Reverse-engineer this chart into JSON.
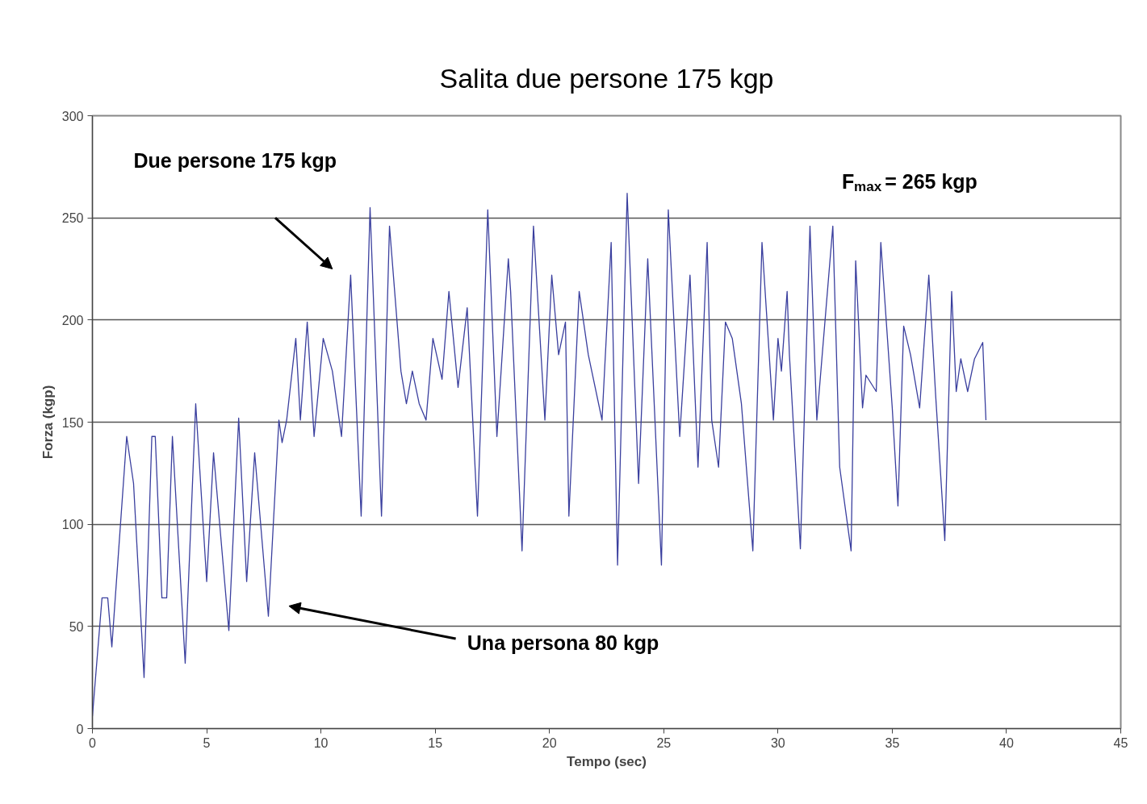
{
  "chart_data": {
    "type": "line",
    "title": "Salita due persone 175 kgp",
    "xlabel": "Tempo (sec)",
    "ylabel": "Forza (kgp)",
    "x": [
      0,
      0.42,
      0.67,
      0.85,
      1.0,
      1.5,
      1.8,
      2.26,
      2.6,
      2.75,
      3.04,
      3.25,
      3.5,
      4.06,
      4.52,
      5.0,
      5.3,
      5.97,
      6.4,
      6.75,
      7.1,
      7.7,
      8.16,
      8.3,
      8.5,
      8.9,
      9.1,
      9.4,
      9.7,
      10.1,
      10.5,
      10.9,
      11.3,
      11.76,
      12.15,
      12.65,
      13.0,
      13.5,
      13.74,
      14.0,
      14.3,
      14.6,
      14.9,
      15.3,
      15.6,
      16.0,
      16.4,
      16.85,
      17.3,
      17.7,
      18.2,
      18.3,
      18.8,
      19.3,
      19.8,
      20.1,
      20.4,
      20.7,
      20.85,
      21.3,
      21.7,
      22.3,
      22.7,
      22.98,
      23.4,
      23.9,
      24.3,
      24.9,
      25.2,
      25.7,
      26.15,
      26.5,
      26.9,
      27.1,
      27.4,
      27.7,
      28.0,
      28.4,
      28.9,
      29.3,
      29.8,
      30.0,
      30.15,
      30.4,
      30.5,
      30.98,
      31.4,
      31.7,
      32.4,
      32.7,
      33.2,
      33.4,
      33.7,
      33.85,
      34.3,
      34.5,
      35.0,
      35.25,
      35.5,
      35.8,
      36.2,
      36.6,
      36.9,
      37.3,
      37.6,
      37.8,
      38.0,
      38.3,
      38.6,
      38.96,
      39.1
    ],
    "series": [
      {
        "color": "#3a3f9e",
        "values": [
          6,
          64,
          64,
          40,
          64,
          143,
          120,
          25,
          143,
          143,
          64,
          64,
          143,
          32,
          159,
          72,
          135,
          48,
          152,
          72,
          135,
          55,
          151,
          140,
          151,
          191,
          151,
          199,
          143,
          191,
          175,
          143,
          222,
          104,
          255,
          104,
          246,
          175,
          159,
          175,
          159,
          151,
          191,
          171,
          214,
          167,
          206,
          104,
          254,
          143,
          230,
          214,
          87,
          246,
          151,
          222,
          183,
          199,
          104,
          214,
          183,
          151,
          238,
          80,
          262,
          120,
          230,
          80,
          254,
          143,
          222,
          128,
          238,
          151,
          128,
          199,
          191,
          159,
          87,
          238,
          151,
          191,
          175,
          214,
          183,
          88,
          246,
          151,
          246,
          128,
          87,
          229,
          157,
          173,
          165,
          238,
          157,
          109,
          197,
          183,
          157,
          222,
          163,
          92,
          214,
          165,
          181,
          165,
          181,
          189,
          151
        ]
      }
    ],
    "xlim": [
      0,
      45
    ],
    "xticks": [
      0,
      5,
      10,
      15,
      20,
      25,
      30,
      35,
      40,
      45
    ],
    "ylim": [
      0,
      300
    ],
    "yticks": [
      0,
      50,
      100,
      150,
      200,
      250,
      300
    ],
    "grid": "y",
    "marker": "none",
    "line_style": "solid",
    "annotations": [
      "Due persone 175 kgp",
      "Una persona 80 kgp",
      "F$_{max}$ = 265 kgp"
    ]
  }
}
